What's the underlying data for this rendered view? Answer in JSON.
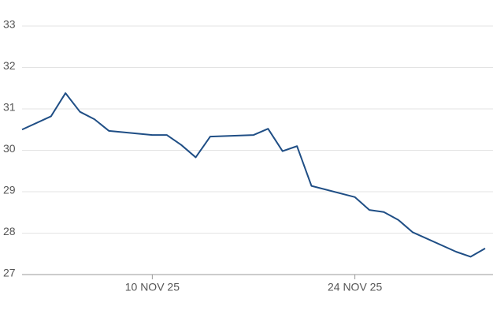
{
  "chart_data": {
    "type": "line",
    "x": [
      "2025-11-01",
      "2025-11-03",
      "2025-11-04",
      "2025-11-05",
      "2025-11-06",
      "2025-11-07",
      "2025-11-10",
      "2025-11-11",
      "2025-11-12",
      "2025-11-13",
      "2025-11-14",
      "2025-11-17",
      "2025-11-18",
      "2025-11-19",
      "2025-11-20",
      "2025-11-21",
      "2025-11-24",
      "2025-11-25",
      "2025-11-26",
      "2025-11-27",
      "2025-11-28",
      "2025-12-01",
      "2025-12-02",
      "2025-12-03"
    ],
    "values": [
      30.5,
      30.82,
      31.38,
      30.93,
      30.75,
      30.47,
      30.37,
      30.37,
      30.13,
      29.83,
      30.33,
      30.37,
      30.52,
      29.98,
      30.1,
      29.14,
      28.87,
      28.56,
      28.51,
      28.32,
      28.02,
      27.55,
      27.43,
      27.63
    ],
    "color": "#1f4e85",
    "xlim": [
      "2025-11-01",
      "2025-12-03"
    ],
    "xticks": [
      {
        "value": "2025-11-10",
        "label": "10 NOV 25"
      },
      {
        "value": "2025-11-24",
        "label": "24 NOV 25"
      }
    ],
    "ylim": [
      27,
      33
    ],
    "yticks": [
      27,
      28,
      29,
      30,
      31,
      32,
      33
    ],
    "grid": true
  }
}
